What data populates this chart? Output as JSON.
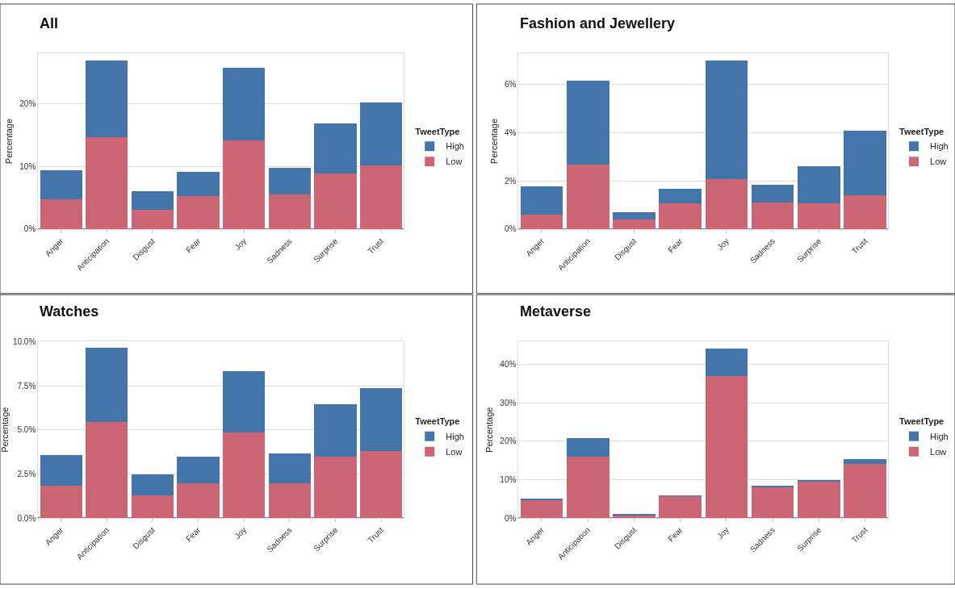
{
  "chart_data": [
    {
      "type": "bar",
      "title": "All",
      "ylabel": "Percentage",
      "legend_title": "TweetType",
      "stacked": true,
      "grid": "y",
      "legend": "right",
      "categories": [
        "Anger",
        "Anticipation",
        "Disgust",
        "Fear",
        "Joy",
        "Sadness",
        "Surprise",
        "Trust"
      ],
      "ylim": [
        0,
        28
      ],
      "yticks": [
        {
          "value": 0,
          "label": "0%"
        },
        {
          "value": 10,
          "label": "10%"
        },
        {
          "value": 20,
          "label": "20%"
        }
      ],
      "series": [
        {
          "name": "Low",
          "color": "#cc6674",
          "values": [
            4.7,
            14.7,
            3.1,
            5.3,
            14.1,
            5.5,
            8.9,
            10.2
          ]
        },
        {
          "name": "High",
          "color": "#4475aa",
          "values": [
            4.7,
            12.2,
            3.0,
            3.8,
            11.6,
            4.3,
            7.9,
            10.0
          ]
        }
      ]
    },
    {
      "type": "bar",
      "title": "Fashion and Jewellery",
      "ylabel": "Percentage",
      "legend_title": "TweetType",
      "stacked": true,
      "grid": "y",
      "legend": "right",
      "categories": [
        "Anger",
        "Anticipation",
        "Disgust",
        "Fear",
        "Joy",
        "Sadness",
        "Surprise",
        "Trust"
      ],
      "ylim": [
        0,
        7.3
      ],
      "yticks": [
        {
          "value": 0,
          "label": "0%"
        },
        {
          "value": 2,
          "label": "2%"
        },
        {
          "value": 4,
          "label": "4%"
        },
        {
          "value": 6,
          "label": "6%"
        }
      ],
      "series": [
        {
          "name": "Low",
          "color": "#cc6674",
          "values": [
            0.59,
            2.67,
            0.41,
            1.07,
            2.06,
            1.1,
            1.07,
            1.39
          ]
        },
        {
          "name": "High",
          "color": "#4475aa",
          "values": [
            1.19,
            3.51,
            0.3,
            0.61,
            4.93,
            0.73,
            1.54,
            2.71
          ]
        }
      ]
    },
    {
      "type": "bar",
      "title": "Watches",
      "ylabel": "Percentage",
      "legend_title": "TweetType",
      "stacked": true,
      "grid": "y",
      "legend": "right",
      "categories": [
        "Anger",
        "Anticipation",
        "Disgust",
        "Fear",
        "Joy",
        "Sadness",
        "Surprise",
        "Trust"
      ],
      "ylim": [
        0,
        10
      ],
      "yticks": [
        {
          "value": 0,
          "label": "0.0%"
        },
        {
          "value": 2.5,
          "label": "2.5%"
        },
        {
          "value": 5,
          "label": "5.0%"
        },
        {
          "value": 7.5,
          "label": "7.5%"
        },
        {
          "value": 10,
          "label": "10.0%"
        }
      ],
      "series": [
        {
          "name": "Low",
          "color": "#cc6674",
          "values": [
            1.82,
            5.43,
            1.3,
            1.96,
            4.83,
            1.97,
            3.46,
            3.82
          ]
        },
        {
          "name": "High",
          "color": "#4475aa",
          "values": [
            1.73,
            4.23,
            1.18,
            1.53,
            3.5,
            1.7,
            3.01,
            3.57
          ]
        }
      ]
    },
    {
      "type": "bar",
      "title": "Metaverse",
      "ylabel": "Percentage",
      "legend_title": "TweetType",
      "stacked": true,
      "grid": "y",
      "legend": "right",
      "categories": [
        "Anger",
        "Anticipation",
        "Disgust",
        "Fear",
        "Joy",
        "Sadness",
        "Surprise",
        "Trust"
      ],
      "ylim": [
        0,
        46
      ],
      "yticks": [
        {
          "value": 0,
          "label": "0%"
        },
        {
          "value": 10,
          "label": "10%"
        },
        {
          "value": 20,
          "label": "20%"
        },
        {
          "value": 30,
          "label": "30%"
        },
        {
          "value": 40,
          "label": "40%"
        }
      ],
      "series": [
        {
          "name": "Low",
          "color": "#cc6674",
          "values": [
            4.7,
            16.1,
            0.6,
            5.6,
            37.1,
            8.0,
            9.4,
            14.2
          ]
        },
        {
          "name": "High",
          "color": "#4475aa",
          "values": [
            0.2,
            4.7,
            0.2,
            0.1,
            7.1,
            0.2,
            0.6,
            1.1
          ]
        }
      ]
    }
  ]
}
